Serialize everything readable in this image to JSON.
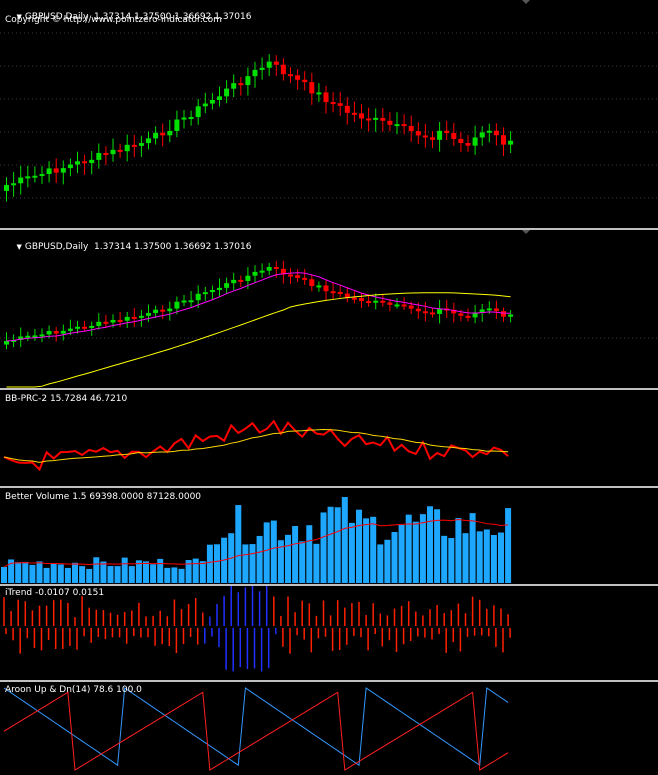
{
  "colors": {
    "bull": "#00e000",
    "bear": "#ff0000",
    "grid": "#3a3a3a",
    "separator": "#c0c0c0",
    "ma_fast": "#ff00ff",
    "ma_slow": "#ffff00",
    "prc": "#ff0000",
    "prc_signal": "#ffd700",
    "volume": "#1ea7ff",
    "volume_ma": "#ff0000",
    "itrend_bull": "#2030ff",
    "itrend_bear": "#ff2000",
    "aroon_up": "#3399ff",
    "aroon_dn": "#ff2020"
  },
  "pane1": {
    "label": "GBPUSD,Daily  1.37314 1.37500 1.36692 1.37016",
    "copyright": "Copyright © http://www.pointzero-indicator.com"
  },
  "pane2": {
    "label": "GBPUSD,Daily  1.37314 1.37500 1.36692 1.37016"
  },
  "pane3": {
    "label": "BB-PRC-2 15.7284 46.7210"
  },
  "pane4": {
    "label": "Better Volume 1.5 69398.0000 87128.0000"
  },
  "pane5": {
    "label": "iTrend -0.0107 0.0151"
  },
  "pane6": {
    "label": "Aroon Up & Dn(14) 78.6 100.0"
  }
}
